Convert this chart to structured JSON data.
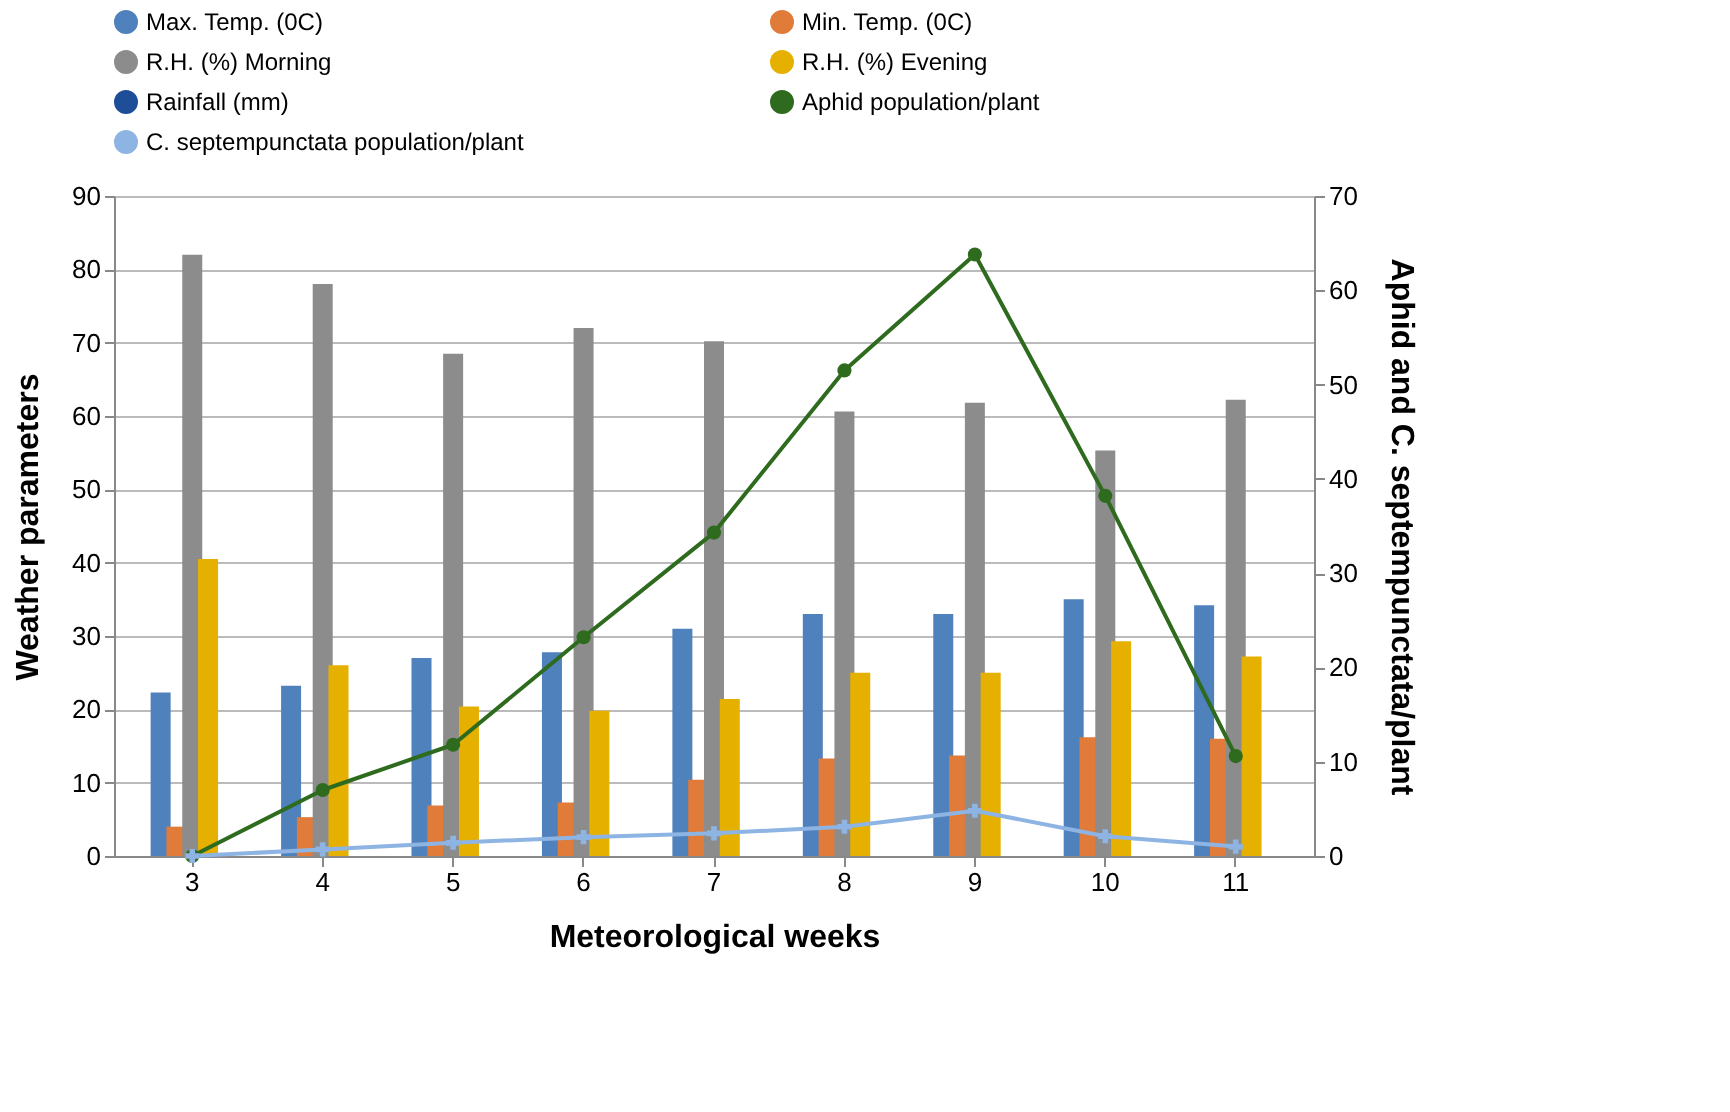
{
  "chart_data": {
    "type": "bar",
    "xlabel": "Meteorological weeks",
    "ylabel": "Weather parameters",
    "y2label": "Aphid and C. septempunctata/plant",
    "categories": [
      "3",
      "4",
      "5",
      "6",
      "7",
      "8",
      "9",
      "10",
      "11"
    ],
    "series": [
      {
        "name": "Max. Temp. (0C)",
        "color": "#4f81bd",
        "values": [
          22.3,
          23.2,
          27,
          27.8,
          31,
          33,
          33,
          35,
          34.2
        ]
      },
      {
        "name": "Min. Temp. (0C)",
        "color": "#e07b39",
        "values": [
          4,
          5.3,
          6.9,
          7.3,
          10.4,
          13.3,
          13.7,
          16.2,
          16
        ]
      },
      {
        "name": "R.H. (%) Morning",
        "color": "#8c8c8c",
        "values": [
          82,
          78,
          68.5,
          72,
          70.2,
          60.6,
          61.8,
          55.3,
          62.2
        ]
      },
      {
        "name": "R.H. (%) Evening",
        "color": "#e6b000",
        "values": [
          40.5,
          26,
          20.4,
          19.8,
          21.4,
          25,
          25,
          29.3,
          27.2
        ]
      },
      {
        "name": "Rainfall (mm)",
        "color": "#1f4e99",
        "values": [
          0,
          0,
          0,
          0,
          0,
          0,
          0,
          0,
          0
        ]
      },
      {
        "name": "Aphid population/plant",
        "color": "#2e6b1e",
        "type": "line",
        "axis": "y2",
        "marker": "circle",
        "values": [
          0,
          7,
          11.8,
          23.2,
          34.3,
          51.5,
          63.8,
          38.2,
          10.6
        ]
      },
      {
        "name": "C. septempunctata population/plant",
        "color": "#8db4e2",
        "type": "line",
        "axis": "y2",
        "marker": "cross",
        "values": [
          0,
          0.7,
          1.4,
          2,
          2.4,
          3.1,
          4.8,
          2.1,
          1
        ]
      }
    ],
    "ylim": [
      0,
      90
    ],
    "yticks": [
      0,
      10,
      20,
      30,
      40,
      50,
      60,
      70,
      80,
      90
    ],
    "y2lim": [
      0,
      70
    ],
    "y2ticks": [
      0,
      10,
      20,
      30,
      40,
      50,
      60,
      70
    ],
    "grid": "y",
    "legend": "top"
  }
}
